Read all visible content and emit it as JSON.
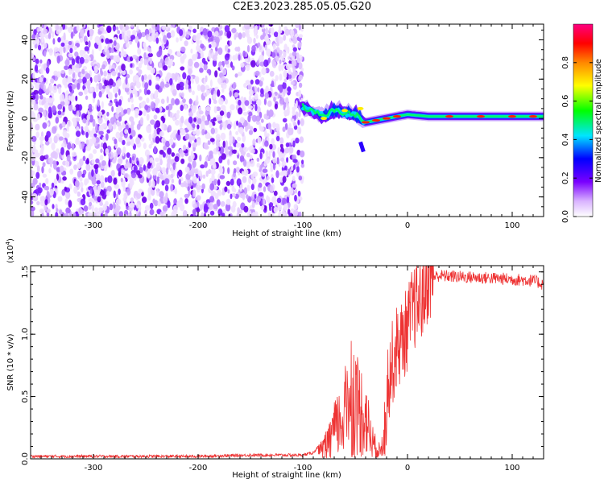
{
  "title": "C2E3.2023.285.05.05.G20",
  "chart_data": [
    {
      "type": "heatmap",
      "title": "C2E3.2023.285.05.05.G20",
      "xlabel": "Height of straight line (km)",
      "ylabel": "Frequency (Hz)",
      "xlim": [
        -360,
        130
      ],
      "ylim": [
        -50,
        48
      ],
      "x_ticks": [
        -300,
        -200,
        -100,
        0,
        100
      ],
      "y_ticks": [
        -40,
        -20,
        0,
        20,
        40
      ],
      "x_tick_labels": [
        "-300",
        "-200",
        "-100",
        "0",
        "100"
      ],
      "y_tick_labels": [
        "-40",
        "-20",
        "0",
        "20",
        "40"
      ],
      "colorbar": {
        "label": "Normalized spectral amplitude",
        "range": [
          0,
          1
        ],
        "ticks": [
          0.0,
          0.2,
          0.4,
          0.6,
          0.8
        ],
        "tick_labels": [
          "0.0",
          "0.2",
          "0.4",
          "0.6",
          "0.8"
        ],
        "colormap": "rainbow (white-purple-blue-cyan-green-yellow-red-magenta)"
      },
      "features": {
        "noise_region_x": [
          -360,
          -100
        ],
        "signal_trace": [
          {
            "x": -100,
            "y": 6
          },
          {
            "x": -90,
            "y": 3
          },
          {
            "x": -80,
            "y": 1
          },
          {
            "x": -70,
            "y": 4
          },
          {
            "x": -60,
            "y": 3
          },
          {
            "x": -50,
            "y": 2
          },
          {
            "x": -40,
            "y": -2
          },
          {
            "x": -30,
            "y": -1
          },
          {
            "x": -20,
            "y": 0
          },
          {
            "x": -10,
            "y": 1
          },
          {
            "x": 0,
            "y": 2
          },
          {
            "x": 20,
            "y": 1
          },
          {
            "x": 50,
            "y": 1
          },
          {
            "x": 80,
            "y": 1
          },
          {
            "x": 110,
            "y": 1
          },
          {
            "x": 130,
            "y": 1
          }
        ]
      }
    },
    {
      "type": "line",
      "xlabel": "Height of straight line (km)",
      "ylabel": "SNR (10 * v/v)",
      "y_multiplier_label": "(x10",
      "y_multiplier_exp": "4",
      "y_multiplier_close": ")",
      "xlim": [
        -360,
        130
      ],
      "ylim": [
        0,
        1.55
      ],
      "x_ticks": [
        -300,
        -200,
        -100,
        0,
        100
      ],
      "y_ticks": [
        0.0,
        0.5,
        1.0,
        1.5
      ],
      "x_tick_labels": [
        "-300",
        "-200",
        "-100",
        "0",
        "100"
      ],
      "y_tick_labels": [
        "0.0",
        "0.5",
        "1.0",
        "1.5"
      ],
      "color": "#ee3333",
      "series": [
        {
          "x": [
            -360,
            -300,
            -200,
            -150,
            -100,
            -90,
            -80,
            -70,
            -60,
            -55,
            -50,
            -45,
            -40,
            -35,
            -30,
            -25,
            -20,
            -15,
            -10,
            -5,
            0,
            5,
            10,
            15,
            20,
            30,
            50,
            80,
            100,
            120,
            130
          ],
          "y": [
            0.02,
            0.02,
            0.02,
            0.03,
            0.03,
            0.05,
            0.15,
            0.4,
            0.6,
            1.05,
            0.8,
            0.7,
            0.6,
            0.3,
            0.15,
            0.1,
            0.6,
            0.75,
            0.9,
            0.95,
            1.05,
            1.2,
            1.25,
            1.3,
            1.45,
            1.47,
            1.46,
            1.45,
            1.44,
            1.43,
            1.4
          ]
        }
      ]
    }
  ]
}
